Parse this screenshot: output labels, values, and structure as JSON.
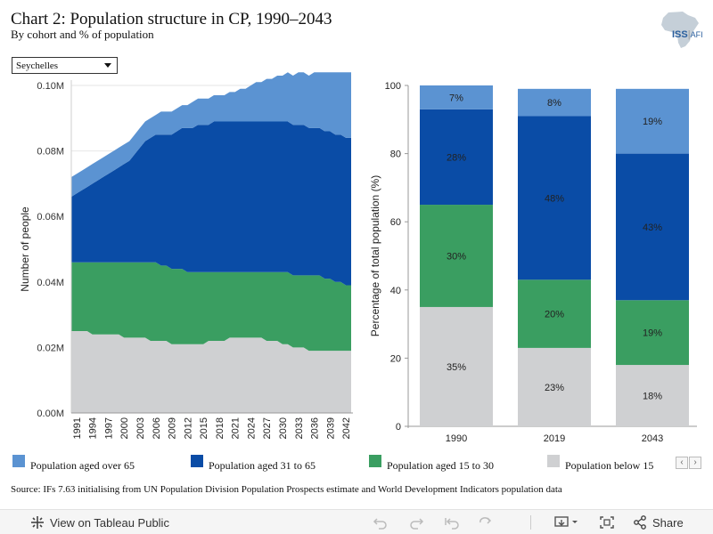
{
  "header": {
    "title": "Chart 2: Population structure in CP, 1990–2043",
    "subtitle": "By cohort and % of population"
  },
  "logo": {
    "text": "ISS",
    "sep": "|",
    "suffix": "AFI"
  },
  "filter": {
    "selected": "Seychelles"
  },
  "colors": {
    "over65": "#5b93d2",
    "age31to65": "#0a4ca6",
    "age15to30": "#3a9e61",
    "below15": "#cfd0d2"
  },
  "chart_data": [
    {
      "type": "area",
      "stacked": true,
      "title": "",
      "xlabel": "",
      "ylabel": "Number of people",
      "ylim": [
        0,
        0.1
      ],
      "y_ticks": [
        0,
        0.02,
        0.04,
        0.06,
        0.08,
        0.1
      ],
      "y_tick_labels": [
        "0.00M",
        "0.02M",
        "0.04M",
        "0.06M",
        "0.08M",
        "0.10M"
      ],
      "x": [
        1990,
        1991,
        1992,
        1993,
        1994,
        1995,
        1996,
        1997,
        1998,
        1999,
        2000,
        2001,
        2002,
        2003,
        2004,
        2005,
        2006,
        2007,
        2008,
        2009,
        2010,
        2011,
        2012,
        2013,
        2014,
        2015,
        2016,
        2017,
        2018,
        2019,
        2020,
        2021,
        2022,
        2023,
        2024,
        2025,
        2026,
        2027,
        2028,
        2029,
        2030,
        2031,
        2032,
        2033,
        2034,
        2035,
        2036,
        2037,
        2038,
        2039,
        2040,
        2041,
        2042,
        2043
      ],
      "x_tick_labels": [
        "1991",
        "1994",
        "1997",
        "2000",
        "2003",
        "2006",
        "2009",
        "2012",
        "2015",
        "2018",
        "2021",
        "2024",
        "2027",
        "2030",
        "2033",
        "2036",
        "2039",
        "2042"
      ],
      "grid": true,
      "series": [
        {
          "name": "Population below 15",
          "values": [
            0.025,
            0.025,
            0.025,
            0.025,
            0.024,
            0.024,
            0.024,
            0.024,
            0.024,
            0.024,
            0.023,
            0.023,
            0.023,
            0.023,
            0.023,
            0.022,
            0.022,
            0.022,
            0.022,
            0.021,
            0.021,
            0.021,
            0.021,
            0.021,
            0.021,
            0.021,
            0.022,
            0.022,
            0.022,
            0.022,
            0.023,
            0.023,
            0.023,
            0.023,
            0.023,
            0.023,
            0.023,
            0.022,
            0.022,
            0.022,
            0.021,
            0.021,
            0.02,
            0.02,
            0.02,
            0.019,
            0.019,
            0.019,
            0.019,
            0.019,
            0.019,
            0.019,
            0.019,
            0.019
          ]
        },
        {
          "name": "Population aged 15 to 30",
          "values": [
            0.021,
            0.021,
            0.021,
            0.021,
            0.022,
            0.022,
            0.022,
            0.022,
            0.022,
            0.022,
            0.023,
            0.023,
            0.023,
            0.023,
            0.023,
            0.024,
            0.024,
            0.023,
            0.023,
            0.023,
            0.023,
            0.023,
            0.022,
            0.022,
            0.022,
            0.022,
            0.021,
            0.021,
            0.021,
            0.021,
            0.02,
            0.02,
            0.02,
            0.02,
            0.02,
            0.02,
            0.02,
            0.021,
            0.021,
            0.021,
            0.022,
            0.022,
            0.022,
            0.022,
            0.022,
            0.023,
            0.023,
            0.023,
            0.022,
            0.022,
            0.021,
            0.021,
            0.02,
            0.02
          ]
        },
        {
          "name": "Population aged 31 to 65",
          "values": [
            0.02,
            0.021,
            0.022,
            0.023,
            0.024,
            0.025,
            0.026,
            0.027,
            0.028,
            0.029,
            0.03,
            0.031,
            0.033,
            0.035,
            0.037,
            0.038,
            0.039,
            0.04,
            0.04,
            0.041,
            0.042,
            0.043,
            0.044,
            0.044,
            0.045,
            0.045,
            0.045,
            0.046,
            0.046,
            0.046,
            0.046,
            0.046,
            0.046,
            0.046,
            0.046,
            0.046,
            0.046,
            0.046,
            0.046,
            0.046,
            0.046,
            0.046,
            0.046,
            0.046,
            0.046,
            0.045,
            0.045,
            0.045,
            0.045,
            0.045,
            0.045,
            0.045,
            0.045,
            0.045
          ]
        },
        {
          "name": "Population aged over 65",
          "values": [
            0.006,
            0.006,
            0.006,
            0.006,
            0.006,
            0.006,
            0.006,
            0.006,
            0.006,
            0.006,
            0.006,
            0.006,
            0.006,
            0.006,
            0.006,
            0.006,
            0.006,
            0.007,
            0.007,
            0.007,
            0.007,
            0.007,
            0.007,
            0.008,
            0.008,
            0.008,
            0.008,
            0.008,
            0.008,
            0.008,
            0.009,
            0.009,
            0.01,
            0.01,
            0.011,
            0.012,
            0.012,
            0.013,
            0.013,
            0.014,
            0.014,
            0.015,
            0.015,
            0.016,
            0.016,
            0.016,
            0.017,
            0.017,
            0.018,
            0.018,
            0.019,
            0.019,
            0.02,
            0.02
          ]
        }
      ]
    },
    {
      "type": "bar",
      "stacked": true,
      "title": "",
      "xlabel": "",
      "ylabel": "Percentage of total population (%)",
      "ylim": [
        0,
        100
      ],
      "y_ticks": [
        0,
        20,
        40,
        60,
        80,
        100
      ],
      "categories": [
        "1990",
        "2019",
        "2043"
      ],
      "grid": false,
      "series": [
        {
          "name": "Population below 15",
          "values": [
            35,
            23,
            18
          ],
          "labels": [
            "35%",
            "23%",
            "18%"
          ]
        },
        {
          "name": "Population aged 15 to 30",
          "values": [
            30,
            20,
            19
          ],
          "labels": [
            "30%",
            "20%",
            "19%"
          ]
        },
        {
          "name": "Population aged 31 to 65",
          "values": [
            28,
            48,
            43
          ],
          "labels": [
            "28%",
            "48%",
            "43%"
          ]
        },
        {
          "name": "Population aged over 65",
          "values": [
            7,
            8,
            19
          ],
          "labels": [
            "7%",
            "8%",
            "19%"
          ]
        }
      ]
    }
  ],
  "legend": [
    {
      "label": "Population aged over 65",
      "color": "#5b93d2"
    },
    {
      "label": "Population aged 31 to 65",
      "color": "#0a4ca6"
    },
    {
      "label": "Population aged 15 to 30",
      "color": "#3a9e61"
    },
    {
      "label": "Population below 15",
      "color": "#cfd0d2"
    }
  ],
  "source": "Source: IFs 7.63 initialising from UN Population Division Population Prospects estimate and World Development Indicators population data",
  "toolbar": {
    "view_label": "View on Tableau Public",
    "share_label": "Share"
  }
}
